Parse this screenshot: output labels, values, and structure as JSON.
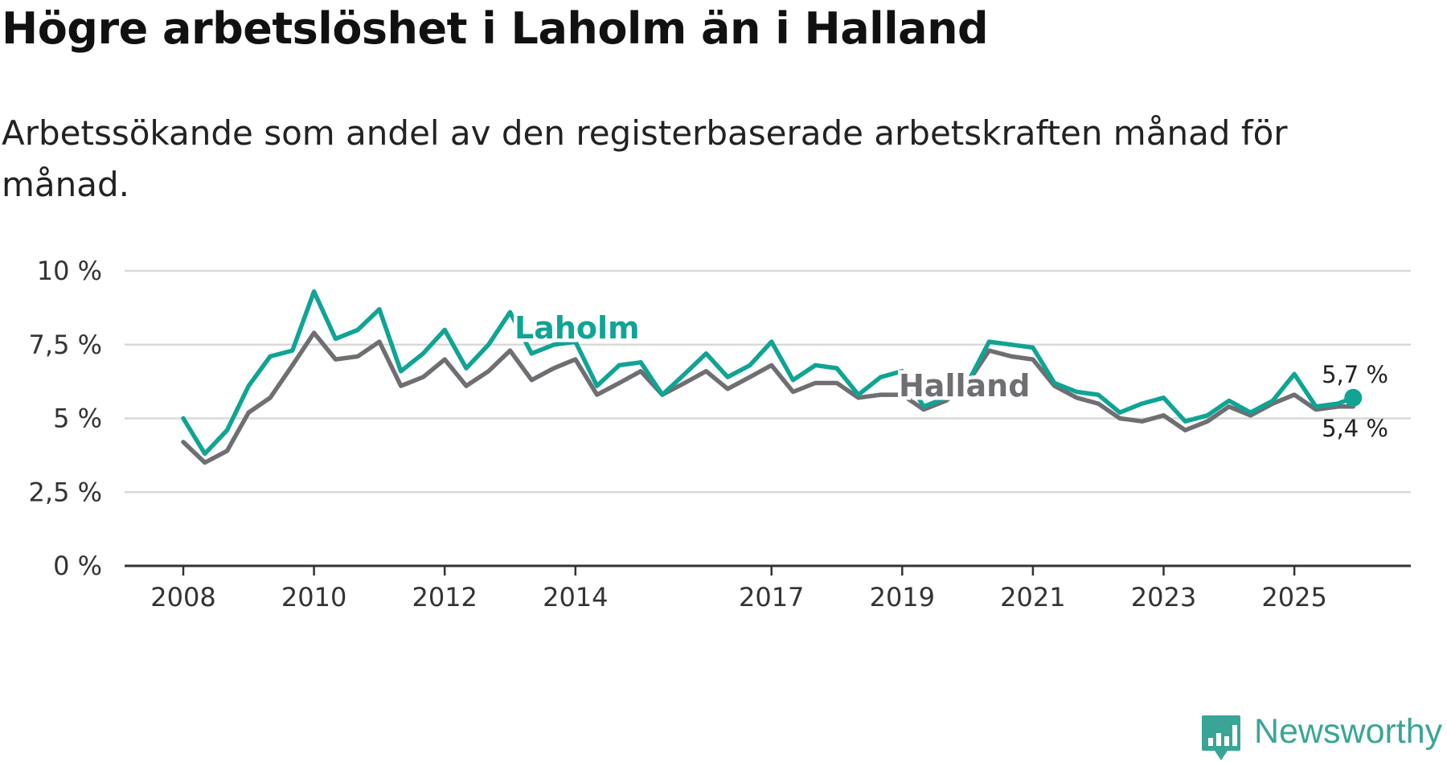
{
  "title": "Högre arbetslöshet i Laholm än i Halland",
  "subtitle": "Arbetssökande som andel av den registerbaserade arbetskraften månad för månad.",
  "brand": "Newsworthy",
  "colors": {
    "laholm": "#0fa494",
    "halland": "#6f6e72",
    "grid": "#d9d9d9",
    "axis": "#333333"
  },
  "chart_data": {
    "type": "line",
    "title": "Högre arbetslöshet i Laholm än i Halland",
    "xlabel": "",
    "ylabel": "",
    "ylim": [
      0,
      10
    ],
    "xlim": [
      2008,
      2026.5
    ],
    "y_ticks": [
      0,
      2.5,
      5,
      7.5,
      10
    ],
    "y_tick_labels": [
      "0 %",
      "2,5 %",
      "5 %",
      "7,5 %",
      "10 %"
    ],
    "x_tick_labels": [
      "2008",
      "2010",
      "2012",
      "2014",
      "2017",
      "2019",
      "2021",
      "2023",
      "2025"
    ],
    "x_tick_values": [
      2008,
      2010,
      2012,
      2014,
      2017,
      2019,
      2021,
      2023,
      2025
    ],
    "x": [
      2008.0,
      2008.33,
      2008.67,
      2009.0,
      2009.33,
      2009.67,
      2010.0,
      2010.33,
      2010.67,
      2011.0,
      2011.33,
      2011.67,
      2012.0,
      2012.33,
      2012.67,
      2013.0,
      2013.33,
      2013.67,
      2014.0,
      2014.33,
      2014.67,
      2015.0,
      2015.33,
      2015.67,
      2016.0,
      2016.33,
      2016.67,
      2017.0,
      2017.33,
      2017.67,
      2018.0,
      2018.33,
      2018.67,
      2019.0,
      2019.33,
      2019.67,
      2020.0,
      2020.33,
      2020.67,
      2021.0,
      2021.33,
      2021.67,
      2022.0,
      2022.33,
      2022.67,
      2023.0,
      2023.33,
      2023.67,
      2024.0,
      2024.33,
      2024.67,
      2025.0,
      2025.33,
      2025.67,
      2025.9
    ],
    "series": [
      {
        "name": "Laholm",
        "label": "Laholm",
        "end_label": "5,7 %",
        "values": [
          5.0,
          3.8,
          4.6,
          6.1,
          7.1,
          7.3,
          9.3,
          7.7,
          8.0,
          8.7,
          6.6,
          7.2,
          8.0,
          6.7,
          7.5,
          8.6,
          7.2,
          7.5,
          7.6,
          6.1,
          6.8,
          6.9,
          5.8,
          6.5,
          7.2,
          6.4,
          6.8,
          7.6,
          6.3,
          6.8,
          6.7,
          5.8,
          6.4,
          6.6,
          5.4,
          5.7,
          6.2,
          7.6,
          7.5,
          7.4,
          6.2,
          5.9,
          5.8,
          5.2,
          5.5,
          5.7,
          4.9,
          5.1,
          5.6,
          5.2,
          5.6,
          6.5,
          5.4,
          5.5,
          5.7
        ]
      },
      {
        "name": "Halland",
        "label": "Halland",
        "end_label": "5,4 %",
        "values": [
          4.2,
          3.5,
          3.9,
          5.2,
          5.7,
          6.8,
          7.9,
          7.0,
          7.1,
          7.6,
          6.1,
          6.4,
          7.0,
          6.1,
          6.6,
          7.3,
          6.3,
          6.7,
          7.0,
          5.8,
          6.2,
          6.6,
          5.8,
          6.2,
          6.6,
          6.0,
          6.4,
          6.8,
          5.9,
          6.2,
          6.2,
          5.7,
          5.8,
          5.8,
          5.3,
          5.6,
          6.2,
          7.3,
          7.1,
          7.0,
          6.1,
          5.7,
          5.5,
          5.0,
          4.9,
          5.1,
          4.6,
          4.9,
          5.4,
          5.1,
          5.5,
          5.8,
          5.3,
          5.4,
          5.4
        ]
      }
    ]
  }
}
